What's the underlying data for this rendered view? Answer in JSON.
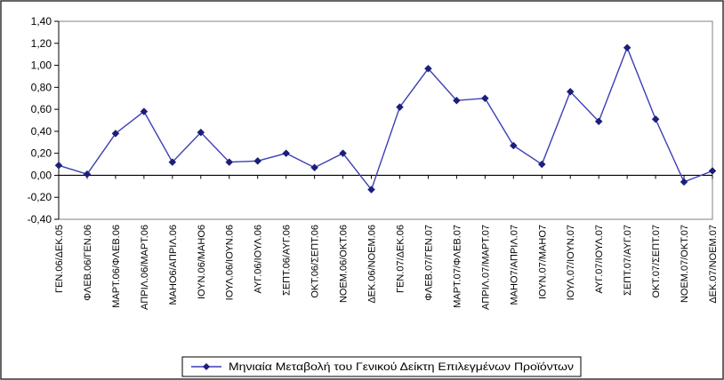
{
  "chart_data": {
    "type": "line",
    "title": "",
    "xlabel": "",
    "ylabel": "",
    "ylim": [
      -0.4,
      1.4
    ],
    "yticks": [
      "-0,40",
      "-0,20",
      "0,00",
      "0,20",
      "0,40",
      "0,60",
      "0,80",
      "1,00",
      "1,20",
      "1,40"
    ],
    "grid": false,
    "legend_position": "bottom",
    "categories": [
      "ΓΕΝ.06/ΔΕΚ.05",
      "ΦΛΕΒ.06/ΓΕΝ.06",
      "ΜΑΡΤ.06/ΦΛΕΒ.06",
      "ΑΠΡΙΛ.06/ΜΑΡΤ.06",
      "ΜΑΗΟ6/ΑΠΡΙΛ.06",
      "ΙΟΥΝ.06/ΜΑΗΟ6",
      "ΙΟΥΛ.06/ΙΟΥΝ.06",
      "ΑΥΓ.06/ΙΟΥΛ.06",
      "ΣΕΠΤ.06/ΑΥΓ.06",
      "ΟΚΤ.06/ΣΕΠΤ.06",
      "ΝΟΕΜ.06/ΟΚΤ.06",
      "ΔΕΚ.06/ΝΟΕΜ.06",
      "ΓΕΝ.07/ΔΕΚ.06",
      "ΦΛΕΒ.07/ΓΕΝ.07",
      "ΜΑΡΤ.07/ΦΛΕΒ.07",
      "ΑΠΡΙΛ.07/ΜΑΡΤ.07",
      "ΜΑΗΟ7/ΑΠΡΙΛ.07",
      "ΙΟΥΝ.07/ΜΑΗΟ7",
      "ΙΟΥΛ.07/ΙΟΥΝ.07",
      "ΑΥΓ.07/ΙΟΥΛ.07",
      "ΣΕΠΤ.07/ΑΥΓ.07",
      "ΟΚΤ.07/ΣΕΠΤ.07",
      "ΝΟΕΜ.07/ΟΚΤ.07",
      "ΔΕΚ.07/ΝΟΕΜ.07"
    ],
    "series": [
      {
        "name": "Μηνιαία Μεταβολή του Γενικού Δείκτη Επιλεγμένων Προϊόντων",
        "color": "#3b3fb5",
        "values": [
          0.09,
          0.01,
          0.38,
          0.58,
          0.12,
          0.39,
          0.12,
          0.13,
          0.2,
          0.07,
          0.2,
          -0.13,
          0.62,
          0.97,
          0.68,
          0.7,
          0.27,
          0.1,
          0.76,
          0.49,
          1.16,
          0.51,
          -0.06,
          0.04
        ]
      }
    ]
  }
}
